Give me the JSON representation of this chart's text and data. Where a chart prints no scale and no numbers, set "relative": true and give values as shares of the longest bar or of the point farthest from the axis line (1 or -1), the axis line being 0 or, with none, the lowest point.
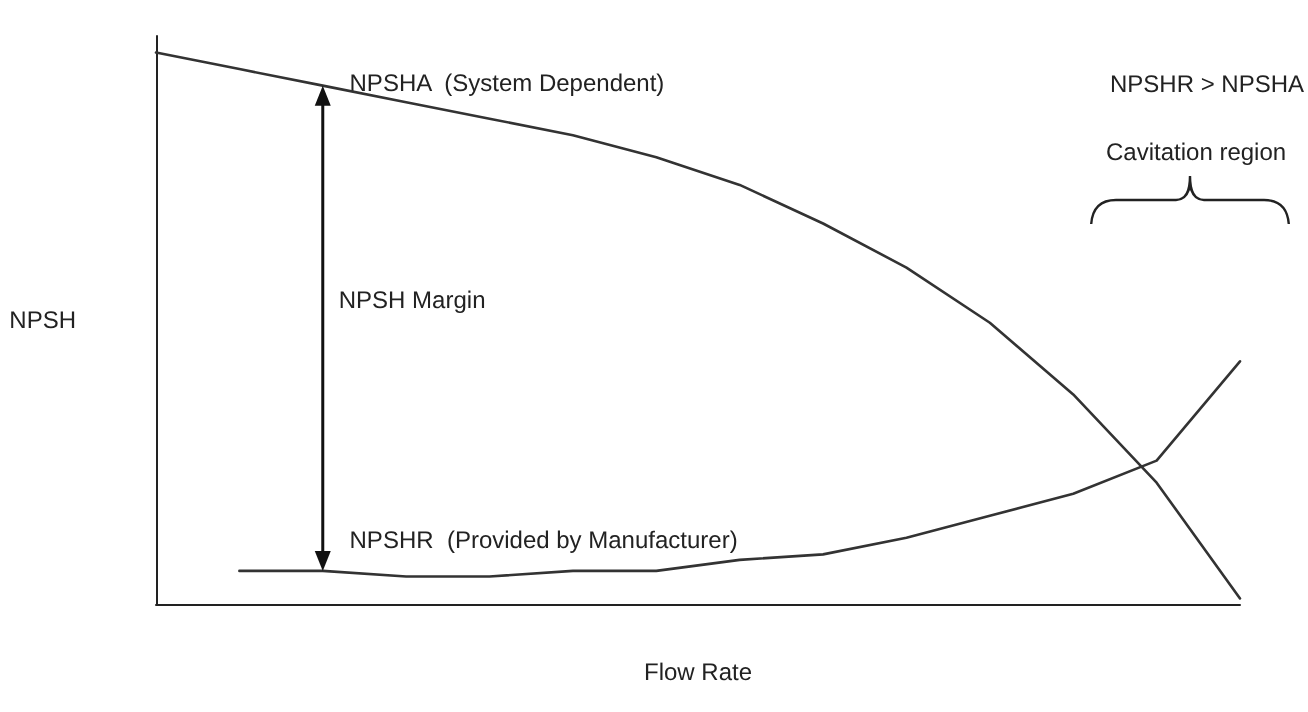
{
  "chart_data": {
    "type": "line",
    "relative": true,
    "xlabel": "Flow Rate",
    "ylabel": "NPSH",
    "marker": "none",
    "line_style": "solid",
    "categories": [
      null,
      null,
      null,
      null,
      null,
      null,
      null,
      null,
      null,
      null,
      null,
      null,
      null,
      null
    ],
    "series": [
      {
        "name": "NPSHA  (System Dependent)",
        "color": "#333333",
        "values": [
          1.0,
          0.97,
          0.94,
          0.91,
          0.88,
          0.85,
          0.81,
          0.76,
          0.69,
          0.61,
          0.51,
          0.38,
          0.22,
          0.01
        ]
      },
      {
        "name": "NPSHR  (Provided by Manufacturer)",
        "color": "#333333",
        "values": [
          null,
          0.06,
          0.06,
          0.05,
          0.05,
          0.06,
          0.06,
          0.08,
          0.09,
          0.12,
          0.16,
          0.2,
          0.26,
          0.44
        ]
      }
    ],
    "annotations": [
      "NPSH Margin",
      "NPSHR > NPSHA",
      "Cavitation region"
    ]
  }
}
